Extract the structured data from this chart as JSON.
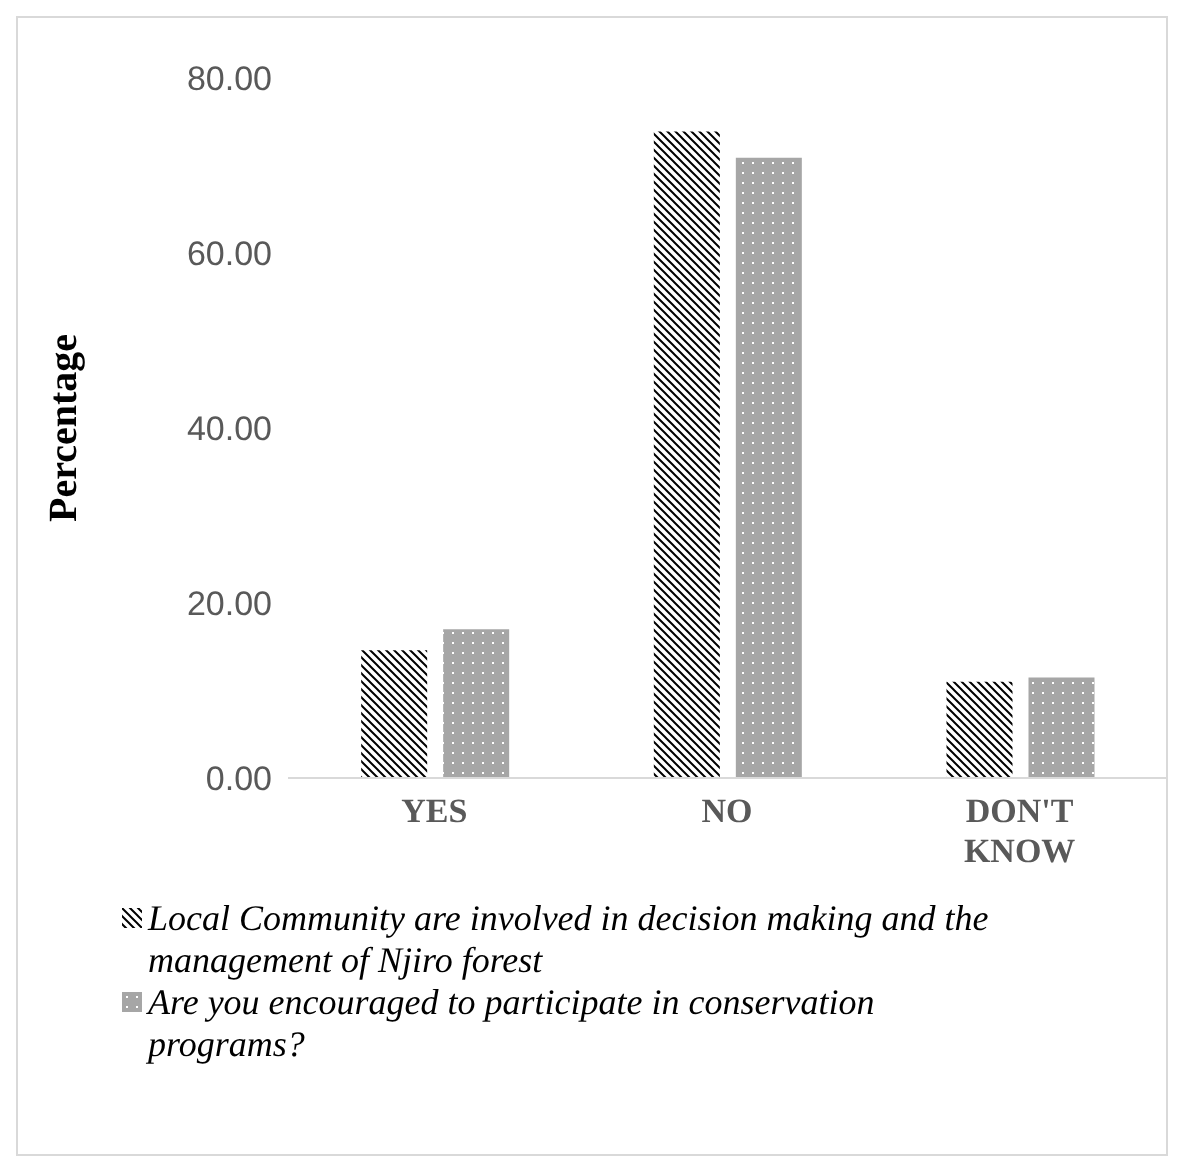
{
  "chart_data": {
    "type": "bar",
    "ylabel": "Percentage",
    "categories": [
      "YES",
      "NO",
      "DON'T KNOW"
    ],
    "series": [
      {
        "name": "Local Community are involved in decision making and the management of Njiro forest",
        "color": "#000000",
        "values": [
          14.6,
          73.9,
          11.0
        ]
      },
      {
        "name": "Are you encouraged to participate in conservation programs?",
        "color": "#a6a6a6",
        "values": [
          17.0,
          70.9,
          11.5
        ]
      }
    ],
    "ylim": [
      0,
      80
    ],
    "yticks": [
      {
        "value": 0,
        "label": "0.00"
      },
      {
        "value": 20,
        "label": "20.00"
      },
      {
        "value": 40,
        "label": "40.00"
      },
      {
        "value": 60,
        "label": "60.00"
      },
      {
        "value": 80,
        "label": "80.00"
      }
    ],
    "grid": false,
    "legend": "bottom"
  }
}
